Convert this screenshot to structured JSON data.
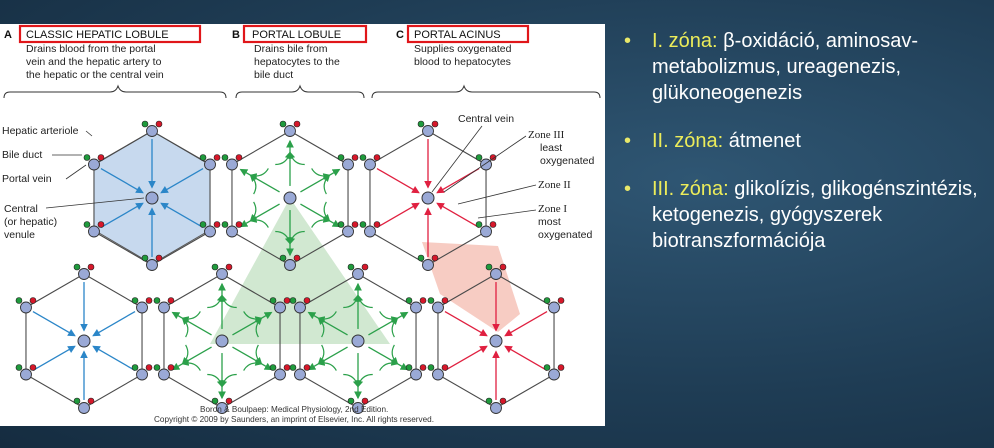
{
  "figure": {
    "panels": [
      {
        "letter": "A",
        "title": "CLASSIC HEPATIC LOBULE",
        "desc": [
          "Drains blood from the portal",
          "vein and the hepatic artery to",
          "the hepatic or the central vein"
        ]
      },
      {
        "letter": "B",
        "title": "PORTAL LOBULE",
        "desc": [
          "Drains bile from",
          "hepatocytes to the",
          "bile duct"
        ]
      },
      {
        "letter": "C",
        "title": "PORTAL ACINUS",
        "desc": [
          "Supplies oxygenated",
          "blood to hepatocytes"
        ]
      }
    ],
    "labels_left": {
      "hepatic_arteriole": "Hepatic arteriole",
      "bile_duct": "Bile duct",
      "portal_vein": "Portal vein",
      "central_1": "Central",
      "central_2": "(or hepatic)",
      "central_3": "venule"
    },
    "labels_right": {
      "central_vein": "Central vein",
      "zone3_a": "Zone III",
      "zone3_b": "least",
      "zone3_c": "oxygenated",
      "zone2": "Zone II",
      "zone1_a": "Zone I",
      "zone1_b": "most",
      "zone1_c": "oxygenated"
    },
    "credit": [
      "Boron & Boulpaep: Medical Physiology, 2nd Edition.",
      "Copyright © 2009 by Saunders, an imprint of Elsevier, Inc. All rights reserved."
    ],
    "colors": {
      "highlight_box": "#e0161a",
      "blood_arrow": "#2b86c8",
      "bile_arrow": "#2ba04a",
      "acinus_arrow": "#e02040",
      "lobule_fill": "#c7d9ee",
      "portal_fill": "#c9e4c9",
      "acinus_fill": "#f6c3b8"
    }
  },
  "bullets": [
    {
      "zone": "I. zóna:",
      "text": " β-oxidáció, aminosav-metabolizmus, ureagenezis, glükoneogenezis"
    },
    {
      "zone": "II. zóna:",
      "text": " átmenet"
    },
    {
      "zone": "III. zóna:",
      "text": " glikolízis, glikogénszintézis, ketogenezis, gyógyszerek biotranszformációja"
    }
  ]
}
